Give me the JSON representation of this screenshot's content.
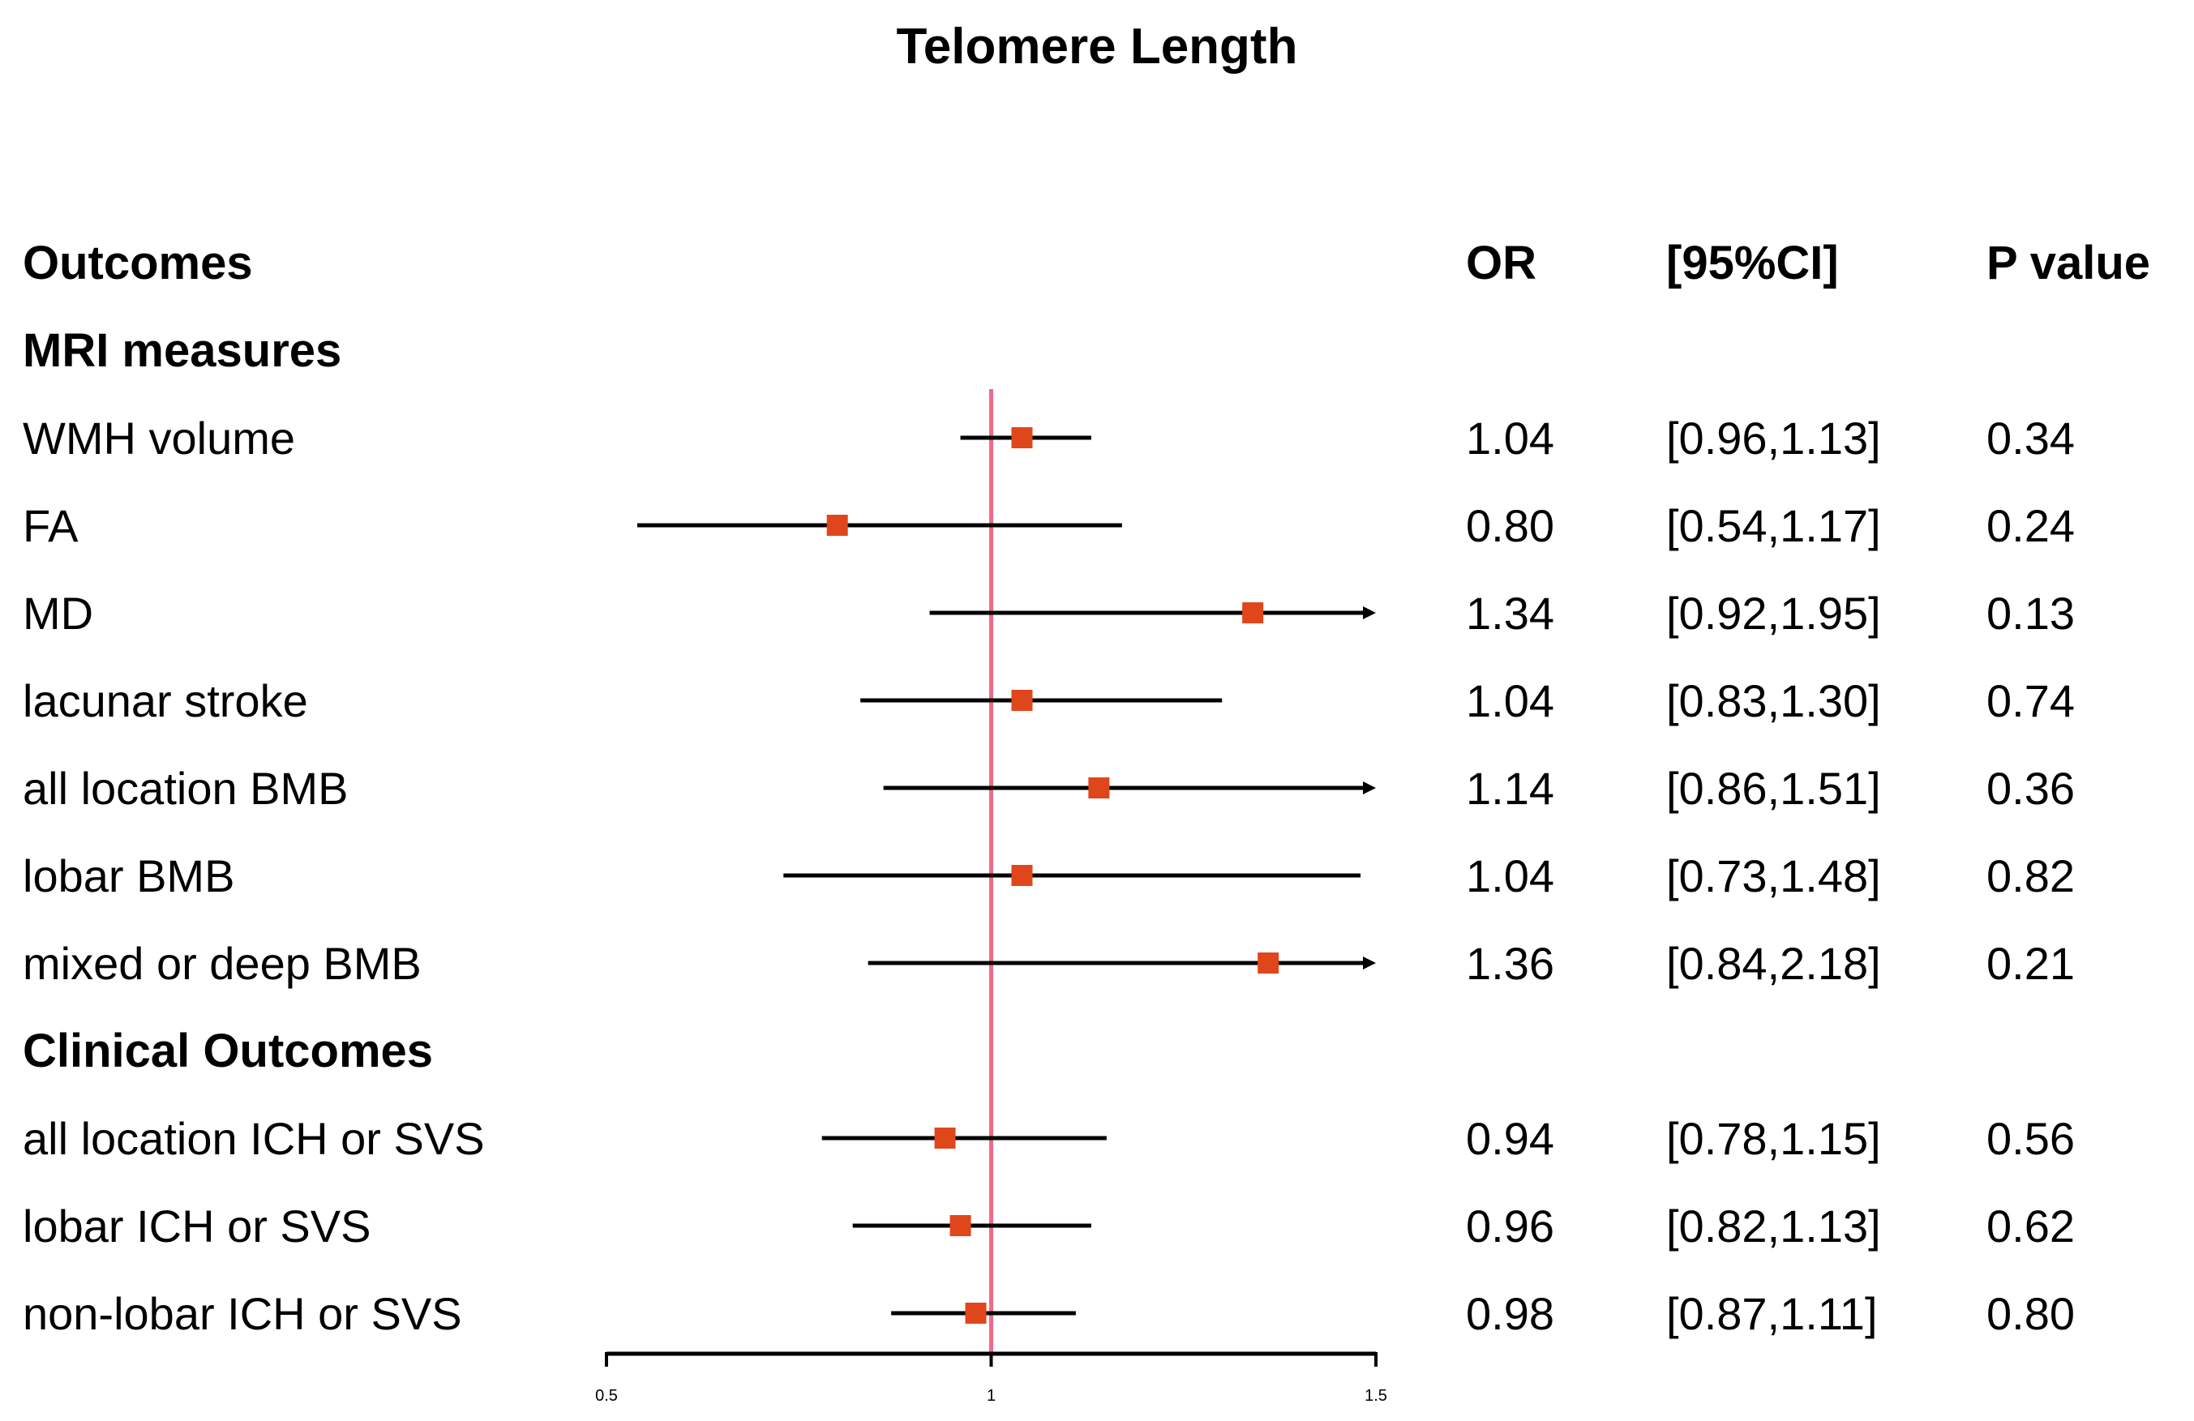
{
  "chart_data": {
    "type": "forest",
    "title": "Telomere Length",
    "columns": {
      "outcomes": "Outcomes",
      "or": "OR",
      "ci": "[95%CI]",
      "p": "P value"
    },
    "reference_line": 1,
    "xlim": [
      0.5,
      1.5
    ],
    "ticks": [
      {
        "value": 0.5,
        "label": "0.5"
      },
      {
        "value": 1,
        "label": "1"
      },
      {
        "value": 1.5,
        "label": "1.5"
      }
    ],
    "colors": {
      "point": "#E0461C",
      "reference": "#F06A8A",
      "line": "#000000"
    },
    "sections": [
      {
        "name": "MRI measures",
        "rows": [
          {
            "label": "WMH volume",
            "or": 1.04,
            "lo": 0.96,
            "hi": 1.13,
            "or_text": "1.04",
            "ci_text": "[0.96,1.13]",
            "p_text": "0.34"
          },
          {
            "label": "FA",
            "or": 0.8,
            "lo": 0.54,
            "hi": 1.17,
            "or_text": "0.80",
            "ci_text": "[0.54,1.17]",
            "p_text": "0.24"
          },
          {
            "label": "MD",
            "or": 1.34,
            "lo": 0.92,
            "hi": 1.95,
            "or_text": "1.34",
            "ci_text": "[0.92,1.95]",
            "p_text": "0.13"
          },
          {
            "label": "lacunar stroke",
            "or": 1.04,
            "lo": 0.83,
            "hi": 1.3,
            "or_text": "1.04",
            "ci_text": "[0.83,1.30]",
            "p_text": "0.74"
          },
          {
            "label": "all location BMB",
            "or": 1.14,
            "lo": 0.86,
            "hi": 1.51,
            "or_text": "1.14",
            "ci_text": "[0.86,1.51]",
            "p_text": "0.36"
          },
          {
            "label": "lobar BMB",
            "or": 1.04,
            "lo": 0.73,
            "hi": 1.48,
            "or_text": "1.04",
            "ci_text": "[0.73,1.48]",
            "p_text": "0.82"
          },
          {
            "label": "mixed or deep BMB",
            "or": 1.36,
            "lo": 0.84,
            "hi": 2.18,
            "or_text": "1.36",
            "ci_text": "[0.84,2.18]",
            "p_text": "0.21"
          }
        ]
      },
      {
        "name": "Clinical Outcomes",
        "rows": [
          {
            "label": "all location ICH or SVS",
            "or": 0.94,
            "lo": 0.78,
            "hi": 1.15,
            "or_text": "0.94",
            "ci_text": "[0.78,1.15]",
            "p_text": "0.56"
          },
          {
            "label": "lobar ICH or SVS",
            "or": 0.96,
            "lo": 0.82,
            "hi": 1.13,
            "or_text": "0.96",
            "ci_text": "[0.82,1.13]",
            "p_text": "0.62"
          },
          {
            "label": "non-lobar ICH or SVS",
            "or": 0.98,
            "lo": 0.87,
            "hi": 1.11,
            "or_text": "0.98",
            "ci_text": "[0.87,1.11]",
            "p_text": "0.80"
          }
        ]
      }
    ]
  }
}
